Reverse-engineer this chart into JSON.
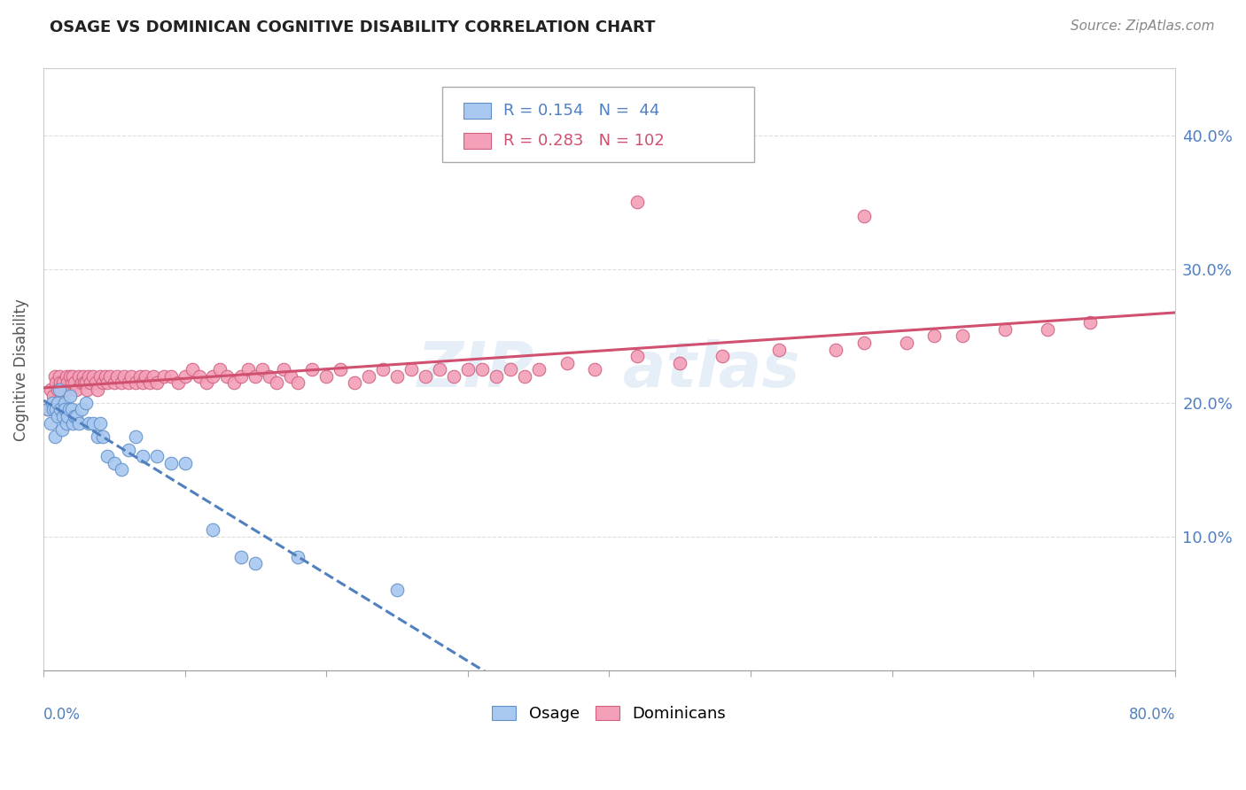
{
  "title": "OSAGE VS DOMINICAN COGNITIVE DISABILITY CORRELATION CHART",
  "source": "Source: ZipAtlas.com",
  "ylabel": "Cognitive Disability",
  "xlim": [
    0.0,
    0.8
  ],
  "ylim": [
    0.0,
    0.45
  ],
  "osage_R": 0.154,
  "osage_N": 44,
  "dominican_R": 0.283,
  "dominican_N": 102,
  "osage_color": "#a8c8f0",
  "dominican_color": "#f4a0b8",
  "osage_edge_color": "#6090c8",
  "dominican_edge_color": "#d06080",
  "osage_line_color": "#5080c0",
  "dominican_line_color": "#d05070",
  "background_color": "#ffffff",
  "grid_color": "#dddddd",
  "right_tick_color": "#5080c0",
  "osage_x": [
    0.003,
    0.005,
    0.006,
    0.007,
    0.008,
    0.009,
    0.01,
    0.01,
    0.011,
    0.012,
    0.013,
    0.014,
    0.015,
    0.015,
    0.016,
    0.017,
    0.018,
    0.019,
    0.02,
    0.021,
    0.022,
    0.023,
    0.025,
    0.027,
    0.03,
    0.032,
    0.035,
    0.038,
    0.04,
    0.042,
    0.045,
    0.05,
    0.055,
    0.06,
    0.065,
    0.07,
    0.08,
    0.09,
    0.1,
    0.12,
    0.14,
    0.15,
    0.18,
    0.25
  ],
  "osage_y": [
    0.195,
    0.185,
    0.2,
    0.195,
    0.175,
    0.195,
    0.19,
    0.2,
    0.21,
    0.195,
    0.18,
    0.19,
    0.2,
    0.195,
    0.185,
    0.19,
    0.195,
    0.205,
    0.195,
    0.185,
    0.19,
    0.19,
    0.185,
    0.195,
    0.2,
    0.185,
    0.185,
    0.175,
    0.185,
    0.175,
    0.16,
    0.155,
    0.15,
    0.165,
    0.175,
    0.16,
    0.16,
    0.155,
    0.155,
    0.105,
    0.085,
    0.08,
    0.085,
    0.06
  ],
  "dominican_x": [
    0.003,
    0.005,
    0.007,
    0.008,
    0.009,
    0.01,
    0.01,
    0.011,
    0.012,
    0.013,
    0.014,
    0.015,
    0.016,
    0.017,
    0.018,
    0.019,
    0.02,
    0.021,
    0.022,
    0.023,
    0.025,
    0.027,
    0.028,
    0.029,
    0.03,
    0.031,
    0.032,
    0.033,
    0.035,
    0.037,
    0.038,
    0.04,
    0.042,
    0.044,
    0.045,
    0.047,
    0.05,
    0.052,
    0.055,
    0.057,
    0.06,
    0.062,
    0.065,
    0.068,
    0.07,
    0.072,
    0.075,
    0.078,
    0.08,
    0.085,
    0.09,
    0.095,
    0.1,
    0.105,
    0.11,
    0.115,
    0.12,
    0.125,
    0.13,
    0.135,
    0.14,
    0.145,
    0.15,
    0.155,
    0.16,
    0.165,
    0.17,
    0.175,
    0.18,
    0.19,
    0.2,
    0.21,
    0.22,
    0.23,
    0.24,
    0.25,
    0.26,
    0.27,
    0.28,
    0.29,
    0.3,
    0.31,
    0.32,
    0.33,
    0.34,
    0.35,
    0.37,
    0.39,
    0.42,
    0.45,
    0.48,
    0.52,
    0.56,
    0.58,
    0.61,
    0.63,
    0.65,
    0.68,
    0.71,
    0.74,
    0.42,
    0.58
  ],
  "dominican_y": [
    0.195,
    0.21,
    0.205,
    0.22,
    0.215,
    0.195,
    0.21,
    0.22,
    0.215,
    0.205,
    0.215,
    0.21,
    0.22,
    0.215,
    0.21,
    0.22,
    0.215,
    0.22,
    0.215,
    0.21,
    0.22,
    0.215,
    0.22,
    0.215,
    0.215,
    0.21,
    0.22,
    0.215,
    0.22,
    0.215,
    0.21,
    0.22,
    0.215,
    0.22,
    0.215,
    0.22,
    0.215,
    0.22,
    0.215,
    0.22,
    0.215,
    0.22,
    0.215,
    0.22,
    0.215,
    0.22,
    0.215,
    0.22,
    0.215,
    0.22,
    0.22,
    0.215,
    0.22,
    0.225,
    0.22,
    0.215,
    0.22,
    0.225,
    0.22,
    0.215,
    0.22,
    0.225,
    0.22,
    0.225,
    0.22,
    0.215,
    0.225,
    0.22,
    0.215,
    0.225,
    0.22,
    0.225,
    0.215,
    0.22,
    0.225,
    0.22,
    0.225,
    0.22,
    0.225,
    0.22,
    0.225,
    0.225,
    0.22,
    0.225,
    0.22,
    0.225,
    0.23,
    0.225,
    0.235,
    0.23,
    0.235,
    0.24,
    0.24,
    0.245,
    0.245,
    0.25,
    0.25,
    0.255,
    0.255,
    0.26,
    0.35,
    0.34
  ]
}
